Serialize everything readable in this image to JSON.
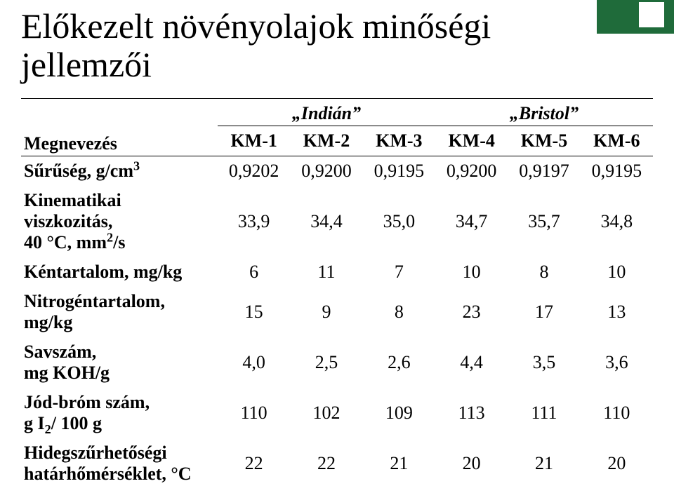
{
  "title_line1": "Előkezelt növényolajok minőségi",
  "title_line2": "jellemzői",
  "header": {
    "megnevezes": "Megnevezés",
    "group1": "„Indián”",
    "group2": "„Bristol”",
    "g1_span": 3,
    "g2_span": 3,
    "km": [
      "KM-1",
      "KM-2",
      "KM-3",
      "KM-4",
      "KM-5",
      "KM-6"
    ]
  },
  "rows": [
    {
      "label_html": "Sűrűség, g/cm<span class='sup'>3</span>",
      "vals": [
        "0,9202",
        "0,9200",
        "0,9195",
        "0,9200",
        "0,9197",
        "0,9195"
      ]
    },
    {
      "label_html": "Kinematikai viszkozitás,<br>40 °C, mm<span class='sup'>2</span>/s",
      "vals": [
        "33,9",
        "34,4",
        "35,0",
        "34,7",
        "35,7",
        "34,8"
      ]
    },
    {
      "label_html": "Kéntartalom, mg/kg",
      "vals": [
        "6",
        "11",
        "7",
        "10",
        "8",
        "10"
      ]
    },
    {
      "label_html": "Nitrogéntartalom, mg/kg",
      "vals": [
        "15",
        "9",
        "8",
        "23",
        "17",
        "13"
      ]
    },
    {
      "label_html": "Savszám,<br>mg KOH/g",
      "vals": [
        "4,0",
        "2,5",
        "2,6",
        "4,4",
        "3,5",
        "3,6"
      ]
    },
    {
      "label_html": "Jód-bróm szám,<br>g I<span class='sub'>2</span>/ 100 g",
      "vals": [
        "110",
        "102",
        "109",
        "113",
        "111",
        "110"
      ]
    },
    {
      "label_html": "Hidegszűrhetőségi<br>határhőmérséklet, °C",
      "vals": [
        "22",
        "22",
        "21",
        "20",
        "21",
        "20"
      ]
    }
  ],
  "colors": {
    "deco_green": "#1f6b3a",
    "deco_white": "#ffffff",
    "text": "#000000",
    "border": "#000000",
    "background": "#ffffff"
  }
}
